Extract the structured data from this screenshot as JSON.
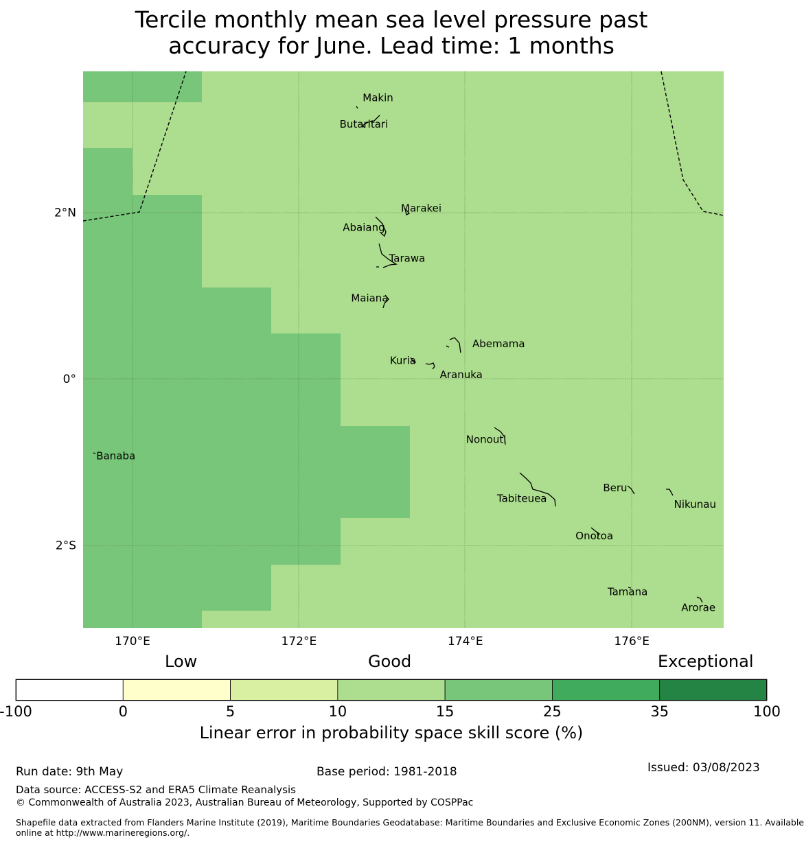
{
  "title": {
    "line1": "Tercile monthly mean sea level pressure past",
    "line2": "accuracy for June. Lead time: 1 months"
  },
  "map": {
    "lon_ticks": [
      {
        "lon": 170,
        "label": "170°E"
      },
      {
        "lon": 172,
        "label": "172°E"
      },
      {
        "lon": 174,
        "label": "174°E"
      },
      {
        "lon": 176,
        "label": "176°E"
      }
    ],
    "lat_ticks": [
      {
        "lat": 2,
        "label": "2°N"
      },
      {
        "lat": 0,
        "label": "0°"
      },
      {
        "lat": -2,
        "label": "2°S"
      }
    ],
    "places": [
      {
        "name": "Makin",
        "lon": 172.95,
        "lat": 3.38
      },
      {
        "name": "Butaritari",
        "lon": 172.78,
        "lat": 3.06
      },
      {
        "name": "Marakei",
        "lon": 173.47,
        "lat": 2.05
      },
      {
        "name": "Abaiang",
        "lon": 172.78,
        "lat": 1.82
      },
      {
        "name": "Tarawa",
        "lon": 173.3,
        "lat": 1.45
      },
      {
        "name": "Maiana",
        "lon": 172.85,
        "lat": 0.97
      },
      {
        "name": "Abemama",
        "lon": 174.4,
        "lat": 0.42
      },
      {
        "name": "Kuria",
        "lon": 173.25,
        "lat": 0.22
      },
      {
        "name": "Aranuka",
        "lon": 173.95,
        "lat": 0.05
      },
      {
        "name": "Nonouti",
        "lon": 174.25,
        "lat": -0.73
      },
      {
        "name": "Banaba",
        "lon": 169.8,
        "lat": -0.93
      },
      {
        "name": "Beru",
        "lon": 175.8,
        "lat": -1.31
      },
      {
        "name": "Tabiteuea",
        "lon": 174.68,
        "lat": -1.44
      },
      {
        "name": "Nikunau",
        "lon": 176.76,
        "lat": -1.51
      },
      {
        "name": "Onotoa",
        "lon": 175.55,
        "lat": -1.89
      },
      {
        "name": "Tamana",
        "lon": 175.95,
        "lat": -2.56
      },
      {
        "name": "Arorae",
        "lon": 176.8,
        "lat": -2.75
      }
    ]
  },
  "colorbar": {
    "category_labels": [
      "Low",
      "Good",
      "Exceptional"
    ],
    "bins": [
      {
        "from": "-100",
        "to": "0",
        "color": "#ffffff"
      },
      {
        "from": "0",
        "to": "5",
        "color": "#ffffcc"
      },
      {
        "from": "5",
        "to": "10",
        "color": "#d9f0a3"
      },
      {
        "from": "10",
        "to": "15",
        "color": "#addd8e"
      },
      {
        "from": "15",
        "to": "25",
        "color": "#78c679"
      },
      {
        "from": "25",
        "to": "35",
        "color": "#41ab5d"
      },
      {
        "from": "35",
        "to": "100",
        "color": "#238443"
      }
    ],
    "tick_labels": [
      "-100",
      "0",
      "5",
      "10",
      "15",
      "25",
      "35",
      "100"
    ],
    "title": "Linear error in probability space skill score (%)"
  },
  "footer": {
    "run_date": "Run date: 9th May",
    "base_period": "Base period: 1981-2018",
    "issued": "Issued: 03/08/2023",
    "data_source": "Data source: ACCESS-S2 and ERA5 Climate Reanalysis",
    "copyright": "© Commonwealth of Australia 2023, Australian Bureau of Meteorology, Supported by COSPPac",
    "shapefile_line1": "Shapefile data extracted from Flanders Marine Institute (2019), Maritime Boundaries Geodatabase: Maritime Boundaries and Exclusive Economic Zones (200NM), version 11. Available",
    "shapefile_line2": "online at http://www.marineregions.org/."
  },
  "colors": {
    "good_fill": "#addd8e",
    "high_fill": "#78c679",
    "boundary": "#000000"
  }
}
